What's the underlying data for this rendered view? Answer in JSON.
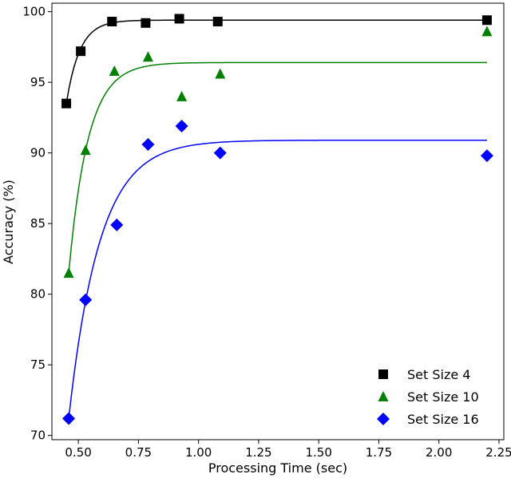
{
  "chart_data": {
    "type": "scatter",
    "title": "",
    "xlabel": "Processing Time (sec)",
    "ylabel": "Accuracy (%)",
    "xlim": [
      0.39,
      2.27
    ],
    "ylim": [
      69.7,
      100.6
    ],
    "xticks": [
      0.5,
      0.75,
      1.0,
      1.25,
      1.5,
      1.75,
      2.0,
      2.25
    ],
    "xtick_labels": [
      "0.50",
      "0.75",
      "1.00",
      "1.25",
      "1.50",
      "1.75",
      "2.00",
      "2.25"
    ],
    "yticks": [
      70,
      75,
      80,
      85,
      90,
      95,
      100
    ],
    "ytick_labels": [
      "70",
      "75",
      "80",
      "85",
      "90",
      "95",
      "100"
    ],
    "grid": false,
    "legend_position": "bottom-right",
    "series": [
      {
        "name": "Set Size 4",
        "marker": "square",
        "color": "#000000",
        "x": [
          0.45,
          0.51,
          0.64,
          0.78,
          0.92,
          1.08,
          2.2
        ],
        "y": [
          93.5,
          97.2,
          99.3,
          99.2,
          99.5,
          99.3,
          99.4
        ],
        "fit": {
          "asymptote": 99.4,
          "start_y": 93.5,
          "rate": 18
        }
      },
      {
        "name": "Set Size 10",
        "marker": "triangle",
        "color": "#008000",
        "x": [
          0.46,
          0.53,
          0.65,
          0.79,
          0.93,
          1.09,
          2.2
        ],
        "y": [
          81.5,
          90.2,
          95.8,
          96.8,
          94.0,
          95.6,
          98.6
        ],
        "fit": {
          "asymptote": 96.4,
          "start_y": 81.5,
          "rate": 12.5
        }
      },
      {
        "name": "Set Size 16",
        "marker": "diamond",
        "color": "#0000ff",
        "x": [
          0.46,
          0.53,
          0.66,
          0.79,
          0.93,
          1.09,
          2.2
        ],
        "y": [
          71.2,
          79.6,
          84.9,
          90.6,
          91.9,
          90.0,
          89.8
        ],
        "fit": {
          "asymptote": 90.9,
          "start_y": 71.2,
          "rate": 7.8
        }
      }
    ]
  }
}
